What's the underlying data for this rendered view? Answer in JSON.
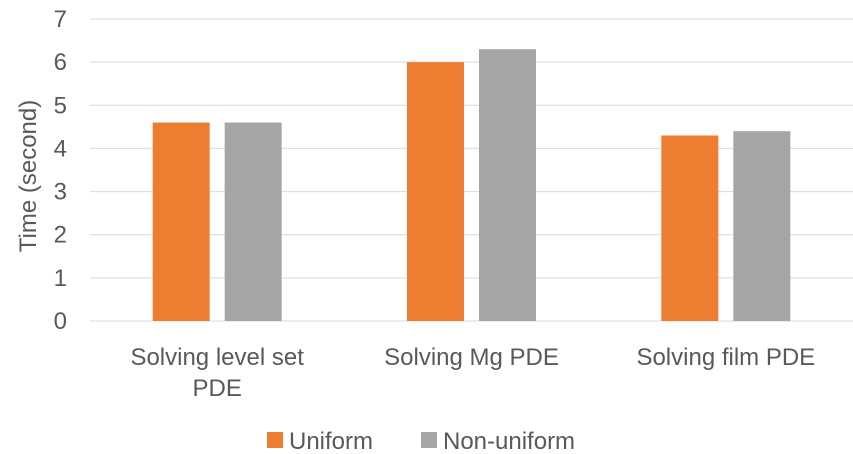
{
  "chart_data": {
    "type": "bar",
    "categories": [
      [
        "Solving level set",
        "PDE"
      ],
      [
        "Solving Mg PDE"
      ],
      [
        "Solving film PDE"
      ]
    ],
    "series": [
      {
        "name": "Uniform",
        "values": [
          4.6,
          6.0,
          4.3
        ],
        "color": "#ED7D31"
      },
      {
        "name": "Non-uniform",
        "values": [
          4.6,
          6.3,
          4.4
        ],
        "color": "#A5A5A5"
      }
    ],
    "ylabel": "Time (second)",
    "ylim": [
      0,
      7
    ],
    "yticks": [
      "0",
      "1",
      "2",
      "3",
      "4",
      "5",
      "6",
      "7"
    ],
    "grid": true,
    "legend_position": "bottom",
    "colors": {
      "text": "#595959",
      "grid": "#D9D9D9"
    }
  }
}
